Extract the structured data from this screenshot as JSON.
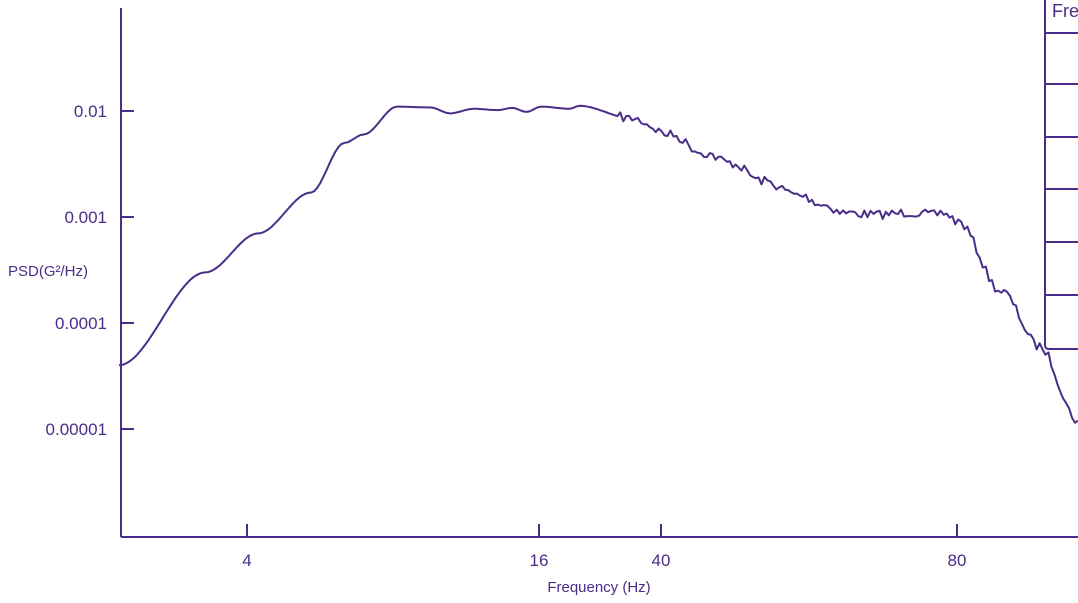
{
  "colors": {
    "line": "#4a2d88",
    "text": "#4a2d88",
    "axis": "#4a2d88",
    "background": "#ffffff"
  },
  "chart_data": {
    "type": "line",
    "title": "",
    "xlabel": "Frequency (Hz)",
    "ylabel": "PSD(G²/Hz)",
    "grid": false,
    "y_scale": "log",
    "x_tick_labels": [
      "4",
      "16",
      "40",
      "80"
    ],
    "y_tick_labels": [
      "0.01",
      "0.001",
      "0.0001",
      "0.00001"
    ],
    "legend_header": "Fre",
    "series": [
      {
        "x_labels": [
          "",
          "",
          "4",
          "",
          "",
          "",
          "",
          "",
          "",
          "",
          "",
          "",
          "",
          "",
          "",
          "16",
          "",
          "",
          "",
          "40",
          "",
          "",
          "",
          "",
          "",
          "",
          "",
          "",
          "",
          "80",
          "",
          ""
        ],
        "values": [
          4e-05,
          0.0003,
          0.0007,
          0.0017,
          0.005,
          0.006,
          0.011,
          0.0108,
          0.0095,
          0.0105,
          0.0102,
          0.0107,
          0.0098,
          0.011,
          0.0105,
          0.0112,
          0.0085,
          0.006,
          0.004,
          0.0032,
          0.0022,
          0.0016,
          0.0013,
          0.0011,
          0.00105,
          0.0011,
          0.00105,
          0.0011,
          0.0009,
          0.0002,
          6e-05,
          1.2e-05
        ]
      }
    ]
  }
}
